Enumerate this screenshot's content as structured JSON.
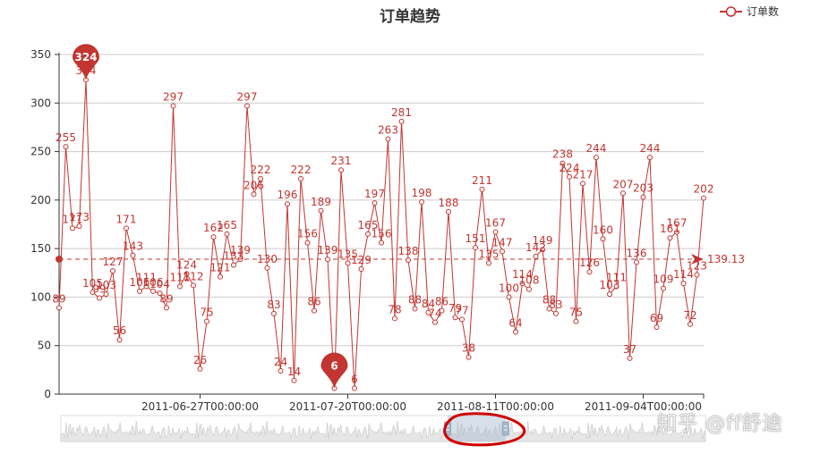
{
  "title": "订单趋势",
  "legend": {
    "label": "订单数",
    "icon": "empty-circle-line-icon"
  },
  "colors": {
    "series": "#c23531",
    "grid": "#cccccc",
    "axis": "#333333",
    "datazoom_fill": "#d8e2ef",
    "datazoom_shadow": "#e6e6e6",
    "annotation": "#d00000"
  },
  "watermark": "知乎 @ff舒途",
  "chart_data": {
    "type": "line",
    "title": "订单趋势",
    "xlabel": "",
    "ylabel": "",
    "ylim": [
      0,
      350
    ],
    "yticks": [
      0,
      50,
      100,
      150,
      200,
      250,
      300,
      350
    ],
    "grid": true,
    "legend_position": "top-right",
    "x_tick_labels": [
      {
        "label": "2011-06-27T00:00:00",
        "index": 21
      },
      {
        "label": "2011-07-20T00:00:00",
        "index": 43
      },
      {
        "label": "2011-08-11T00:00:00",
        "index": 65
      },
      {
        "label": "2011-09-04T00:00:00",
        "index": 87
      }
    ],
    "series": [
      {
        "name": "订单数",
        "values": [
          89,
          255,
          171,
          173,
          324,
          105,
          99,
          103,
          127,
          56,
          171,
          143,
          106,
          111,
          106,
          104,
          89,
          297,
          111,
          124,
          112,
          26,
          75,
          162,
          121,
          165,
          133,
          139,
          297,
          206,
          222,
          130,
          83,
          24,
          196,
          14,
          222,
          156,
          86,
          189,
          139,
          6,
          231,
          135,
          6,
          129,
          165,
          197,
          156,
          263,
          78,
          281,
          138,
          88,
          198,
          84,
          74,
          86,
          188,
          79,
          77,
          38,
          151,
          211,
          135,
          167,
          147,
          100,
          64,
          114,
          108,
          142,
          149,
          88,
          83,
          238,
          224,
          75,
          217,
          126,
          244,
          160,
          103,
          111,
          207,
          37,
          136,
          203,
          244,
          69,
          109,
          161,
          167,
          114,
          72,
          123,
          202
        ]
      }
    ],
    "mark_points": [
      {
        "type": "max",
        "value": 324,
        "label": "324"
      },
      {
        "type": "min",
        "value": 6,
        "label": "6"
      }
    ],
    "mark_line": {
      "type": "average",
      "value": 139.13,
      "label": "139.13"
    },
    "data_zoom": {
      "type": "slider",
      "range_start_percent": 60,
      "range_end_percent": 69
    }
  }
}
